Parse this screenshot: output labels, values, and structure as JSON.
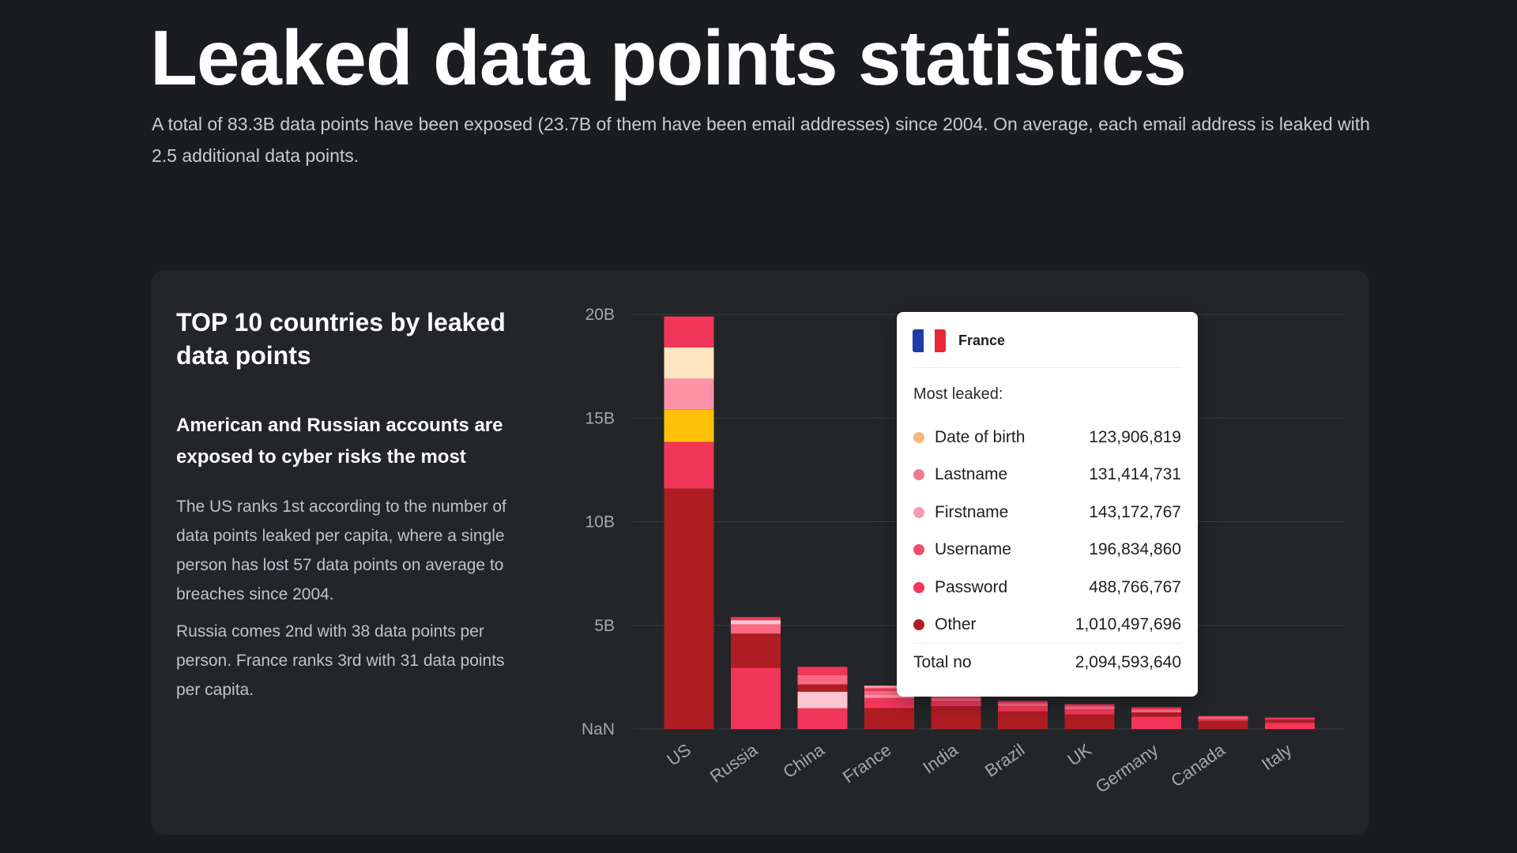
{
  "header": {
    "title": "Leaked data points statistics",
    "subtitle": "A total of 83.3B data points have been exposed (23.7B of them have been email addresses) since 2004. On average, each email address is leaked with 2.5 additional data points."
  },
  "card": {
    "title": "TOP 10 countries by leaked data points",
    "subtitle": "American and Russian accounts are exposed to cyber risks the most",
    "paragraph1": "The US ranks 1st according to the number of data points leaked per capita, where a single person has lost 57 data points on average to breaches since 2004.",
    "paragraph2": "Russia comes 2nd with 38 data points per person. France ranks 3rd with 31 data points per capita."
  },
  "colors": {
    "background": "#1a1c1f",
    "card": "#232528",
    "grid": "#3a3d42",
    "flag_blue": "#1f3ca6",
    "flag_white": "#ffffff",
    "flag_red": "#e8273b"
  },
  "chart_data": {
    "type": "bar",
    "stacked": true,
    "title": "",
    "xlabel": "",
    "ylabel": "",
    "ylim": [
      0,
      20000000000
    ],
    "y_ticks": [
      {
        "value": 0,
        "label": "NaN"
      },
      {
        "value": 5000000000,
        "label": "5B"
      },
      {
        "value": 10000000000,
        "label": "10B"
      },
      {
        "value": 15000000000,
        "label": "15B"
      },
      {
        "value": 20000000000,
        "label": "20B"
      }
    ],
    "grid": true,
    "categories": [
      "US",
      "Russia",
      "China",
      "France",
      "India",
      "Brazil",
      "UK",
      "Germany",
      "Canada",
      "Italy"
    ],
    "series": [
      {
        "key": "segment-1",
        "color": "#ae1d22",
        "values": [
          11600000000,
          0,
          0,
          1010000000,
          1100000000,
          850000000,
          700000000,
          0,
          400000000,
          0
        ]
      },
      {
        "key": "segment-2",
        "color": "#f2365a",
        "values": [
          2250000000,
          2950000000,
          1000000000,
          490000000,
          250000000,
          250000000,
          250000000,
          600000000,
          100000000,
          300000000
        ]
      },
      {
        "key": "segment-3",
        "color": "#ffc107",
        "values": [
          1550000000,
          0,
          0,
          0,
          0,
          0,
          0,
          0,
          0,
          0
        ]
      },
      {
        "key": "segment-4",
        "color": "#fd92a6",
        "values": [
          1500000000,
          0,
          0,
          140000000,
          0,
          0,
          0,
          0,
          0,
          0
        ]
      },
      {
        "key": "segment-5",
        "color": "#fde5c0",
        "values": [
          1500000000,
          0,
          0,
          0,
          0,
          0,
          0,
          0,
          0,
          0
        ]
      },
      {
        "key": "segment-6",
        "color": "#ae1d22",
        "values": [
          0,
          1650000000,
          0,
          0,
          0,
          0,
          0,
          200000000,
          0,
          0
        ]
      },
      {
        "key": "segment-7",
        "color": "#fdc6d0",
        "values": [
          0,
          0,
          800000000,
          0,
          0,
          0,
          0,
          0,
          0,
          0
        ]
      },
      {
        "key": "segment-8",
        "color": "#ae1d22",
        "values": [
          0,
          0,
          350000000,
          0,
          0,
          0,
          0,
          0,
          0,
          0
        ]
      },
      {
        "key": "segment-9",
        "color": "#fd6882",
        "values": [
          0,
          450000000,
          450000000,
          200000000,
          150000000,
          150000000,
          150000000,
          150000000,
          80000000,
          0
        ]
      },
      {
        "key": "segment-10",
        "color": "#fdc6d0",
        "values": [
          0,
          200000000,
          0,
          0,
          0,
          0,
          0,
          0,
          0,
          0
        ]
      },
      {
        "key": "segment-11",
        "color": "#ae1d22",
        "values": [
          0,
          0,
          0,
          0,
          0,
          0,
          0,
          0,
          0,
          150000000
        ]
      },
      {
        "key": "segment-12",
        "color": "#f2365a",
        "values": [
          1500000000,
          150000000,
          400000000,
          124000000,
          100000000,
          100000000,
          100000000,
          100000000,
          50000000,
          100000000
        ]
      },
      {
        "key": "segment-13",
        "color": "#fd92a6",
        "values": [
          0,
          0,
          0,
          130000000,
          0,
          0,
          0,
          0,
          0,
          0
        ]
      }
    ]
  },
  "tooltip": {
    "country": "France",
    "heading": "Most leaked:",
    "rows": [
      {
        "label": "Date of birth",
        "value": "123,906,819",
        "color": "#f8b77b"
      },
      {
        "label": "Lastname",
        "value": "131,414,731",
        "color": "#f67991"
      },
      {
        "label": "Firstname",
        "value": "143,172,767",
        "color": "#f99bb0"
      },
      {
        "label": "Username",
        "value": "196,834,860",
        "color": "#f04e6c"
      },
      {
        "label": "Password",
        "value": "488,766,767",
        "color": "#f2365a"
      },
      {
        "label": "Other",
        "value": "1,010,497,696",
        "color": "#ae1d22"
      }
    ],
    "total_label": "Total no",
    "total_value": "2,094,593,640"
  }
}
